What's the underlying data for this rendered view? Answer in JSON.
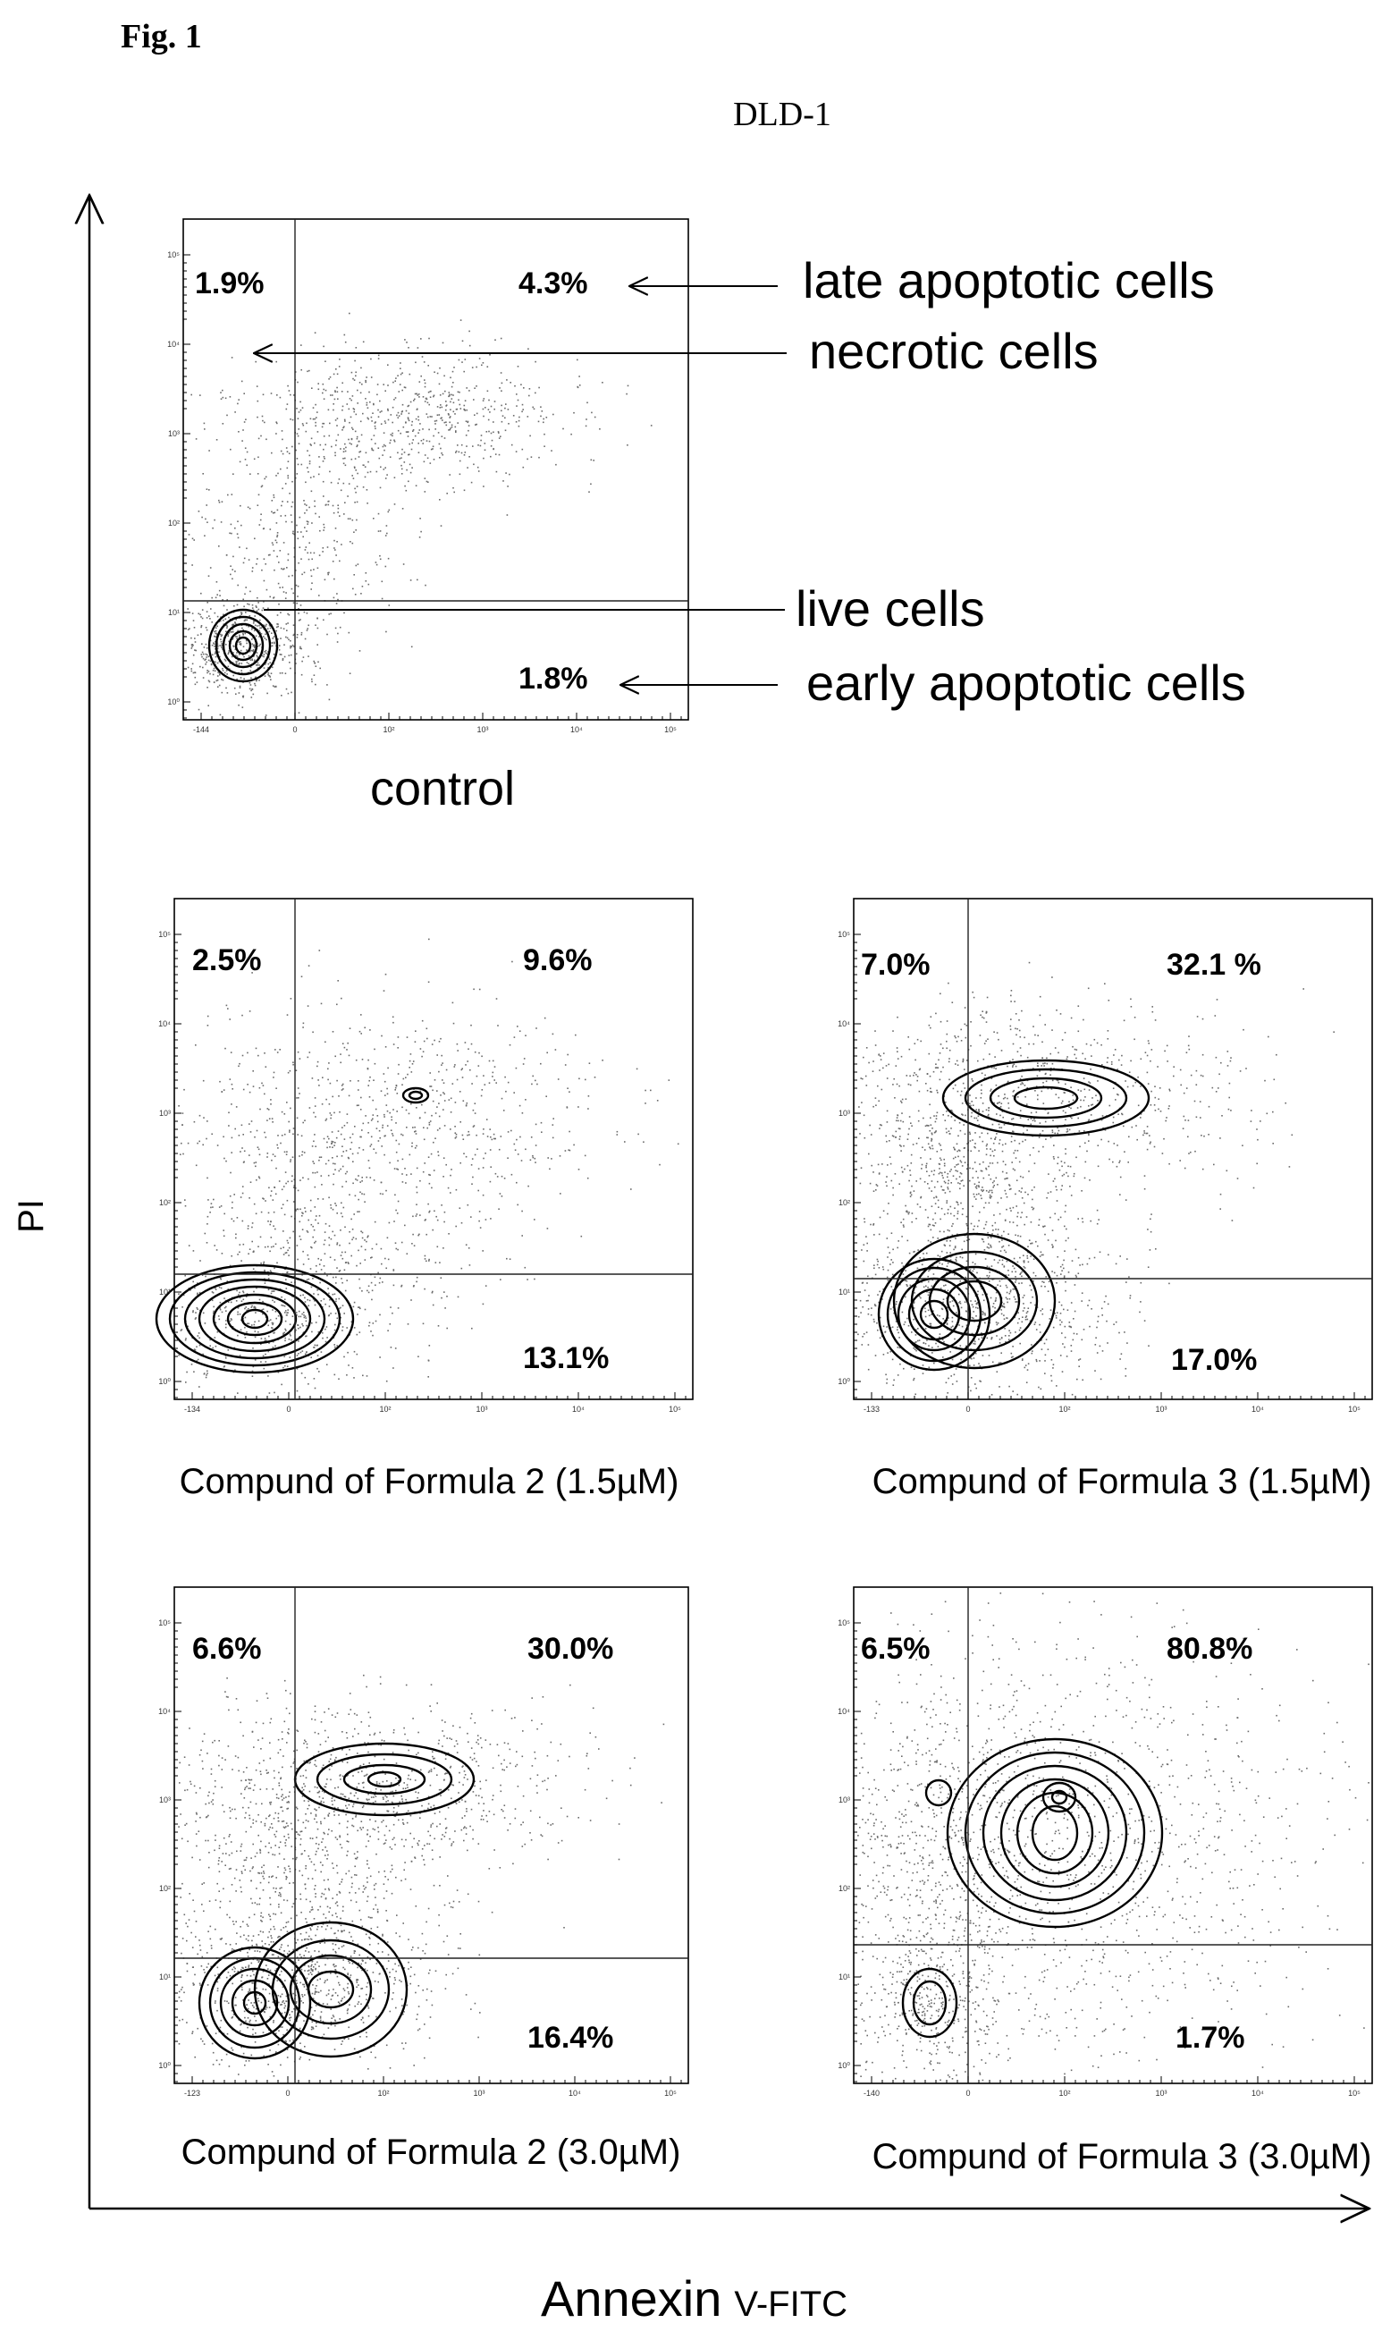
{
  "figure": {
    "fig_label": "Fig. 1",
    "title": "DLD-1",
    "y_axis_label": "PI",
    "x_axis_label_main": "Annexin",
    "x_axis_label_sub": "V-FITC"
  },
  "annotations": {
    "late_apoptotic": "late apoptotic cells",
    "necrotic": "necrotic cells",
    "live": "live cells",
    "early_apoptotic": "early apoptotic cells"
  },
  "chart_data": [
    {
      "type": "scatter",
      "title": "control",
      "quadrants": {
        "upper_left": "1.9%",
        "upper_right": "4.3%",
        "lower_left": "",
        "lower_right": "1.8%"
      },
      "y_tick_labels": [
        "10⁵",
        "10⁴",
        "10³",
        "10²",
        "10¹",
        "10⁰"
      ],
      "x_tick_labels": [
        "-144",
        "0",
        "10²",
        "10³",
        "10⁴",
        "10⁵"
      ]
    },
    {
      "type": "scatter",
      "title": "Compund of Formula 2 (1.5µM)",
      "quadrants": {
        "upper_left": "2.5%",
        "upper_right": "9.6%",
        "lower_left": "",
        "lower_right": "13.1%"
      },
      "y_tick_labels": [
        "10⁵",
        "10⁴",
        "10³",
        "10²",
        "10¹",
        "10⁰"
      ],
      "x_tick_labels": [
        "-134",
        "0",
        "10²",
        "10³",
        "10⁴",
        "10⁵"
      ]
    },
    {
      "type": "scatter",
      "title": "Compund of Formula 3 (1.5µM)",
      "quadrants": {
        "upper_left": "7.0%",
        "upper_right": "32.1 %",
        "lower_left": "",
        "lower_right": "17.0%"
      },
      "y_tick_labels": [
        "10⁵",
        "10⁴",
        "10³",
        "10²",
        "10¹",
        "10⁰"
      ],
      "x_tick_labels": [
        "-133",
        "0",
        "10²",
        "10³",
        "10⁴",
        "10⁵"
      ]
    },
    {
      "type": "scatter",
      "title": "Compund of Formula 2 (3.0µM)",
      "quadrants": {
        "upper_left": "6.6%",
        "upper_right": "30.0%",
        "lower_left": "",
        "lower_right": "16.4%"
      },
      "y_tick_labels": [
        "10⁵",
        "10⁴",
        "10³",
        "10²",
        "10¹",
        "10⁰"
      ],
      "x_tick_labels": [
        "-123",
        "0",
        "10²",
        "10³",
        "10⁴",
        "10⁵"
      ]
    },
    {
      "type": "scatter",
      "title": "Compund of Formula 3 (3.0µM)",
      "quadrants": {
        "upper_left": "6.5%",
        "upper_right": "80.8%",
        "lower_left": "",
        "lower_right": "1.7%"
      },
      "y_tick_labels": [
        "10⁵",
        "10⁴",
        "10³",
        "10²",
        "10¹",
        "10⁰"
      ],
      "x_tick_labels": [
        "-140",
        "0",
        "10²",
        "10³",
        "10⁴",
        "10⁵"
      ]
    }
  ]
}
